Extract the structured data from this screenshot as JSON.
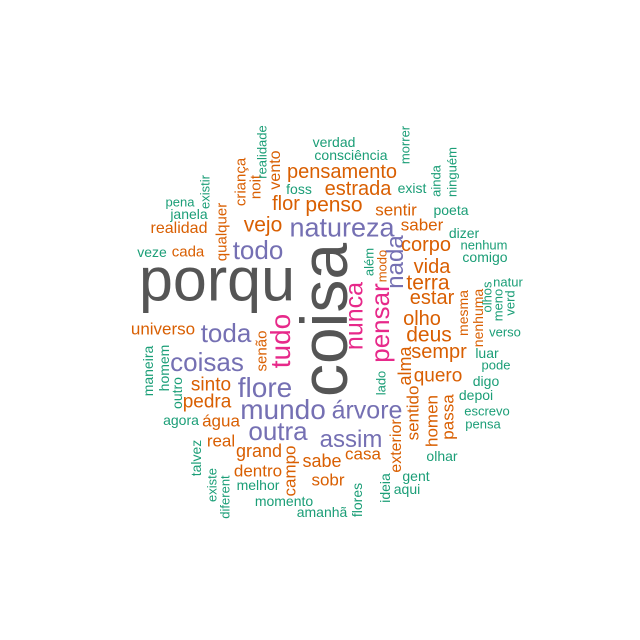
{
  "chart_data": {
    "type": "wordcloud",
    "tier_colors": {
      "1": "#1b9e77",
      "2": "#d95f02",
      "3": "#7570b3",
      "4": "#e7298a",
      "5": "#555555"
    },
    "words": [
      {
        "text": "porqu",
        "tier": 5
      },
      {
        "text": "coisa",
        "tier": 5
      },
      {
        "text": "nunca",
        "tier": 4
      },
      {
        "text": "pensar",
        "tier": 4
      },
      {
        "text": "tudo",
        "tier": 4
      },
      {
        "text": "natureza",
        "tier": 3
      },
      {
        "text": "todo",
        "tier": 3
      },
      {
        "text": "nada",
        "tier": 3
      },
      {
        "text": "toda",
        "tier": 3
      },
      {
        "text": "coisas",
        "tier": 3
      },
      {
        "text": "flore",
        "tier": 3
      },
      {
        "text": "mundo",
        "tier": 3
      },
      {
        "text": "árvore",
        "tier": 3
      },
      {
        "text": "outra",
        "tier": 3
      },
      {
        "text": "assim",
        "tier": 3
      },
      {
        "text": "pensamento",
        "tier": 2
      },
      {
        "text": "estrada",
        "tier": 2
      },
      {
        "text": "flor",
        "tier": 2
      },
      {
        "text": "penso",
        "tier": 2
      },
      {
        "text": "sentir",
        "tier": 2
      },
      {
        "text": "vejo",
        "tier": 2
      },
      {
        "text": "saber",
        "tier": 2
      },
      {
        "text": "realidad",
        "tier": 2
      },
      {
        "text": "corpo",
        "tier": 2
      },
      {
        "text": "cada",
        "tier": 2
      },
      {
        "text": "vida",
        "tier": 2
      },
      {
        "text": "terra",
        "tier": 2
      },
      {
        "text": "estar",
        "tier": 2
      },
      {
        "text": "universo",
        "tier": 2
      },
      {
        "text": "olho",
        "tier": 2
      },
      {
        "text": "deus",
        "tier": 2
      },
      {
        "text": "sempr",
        "tier": 2
      },
      {
        "text": "quero",
        "tier": 2
      },
      {
        "text": "sinto",
        "tier": 2
      },
      {
        "text": "pedra",
        "tier": 2
      },
      {
        "text": "água",
        "tier": 2
      },
      {
        "text": "real",
        "tier": 2
      },
      {
        "text": "grand",
        "tier": 2
      },
      {
        "text": "casa",
        "tier": 2
      },
      {
        "text": "sabe",
        "tier": 2
      },
      {
        "text": "dentro",
        "tier": 2
      },
      {
        "text": "sobr",
        "tier": 2
      },
      {
        "text": "criança",
        "tier": 2
      },
      {
        "text": "noit",
        "tier": 2
      },
      {
        "text": "vento",
        "tier": 2
      },
      {
        "text": "qualquer",
        "tier": 2
      },
      {
        "text": "modo",
        "tier": 2
      },
      {
        "text": "mesma",
        "tier": 2
      },
      {
        "text": "nenhuma",
        "tier": 2
      },
      {
        "text": "senão",
        "tier": 2
      },
      {
        "text": "alma",
        "tier": 2
      },
      {
        "text": "sentido",
        "tier": 2
      },
      {
        "text": "homen",
        "tier": 2
      },
      {
        "text": "passa",
        "tier": 2
      },
      {
        "text": "exterior",
        "tier": 2
      },
      {
        "text": "campo",
        "tier": 2
      },
      {
        "text": "verdad",
        "tier": 1
      },
      {
        "text": "consciência",
        "tier": 1
      },
      {
        "text": "foss",
        "tier": 1
      },
      {
        "text": "exist",
        "tier": 1
      },
      {
        "text": "poeta",
        "tier": 1
      },
      {
        "text": "pena",
        "tier": 1
      },
      {
        "text": "janela",
        "tier": 1
      },
      {
        "text": "dizer",
        "tier": 1
      },
      {
        "text": "nenhum",
        "tier": 1
      },
      {
        "text": "veze",
        "tier": 1
      },
      {
        "text": "comigo",
        "tier": 1
      },
      {
        "text": "natur",
        "tier": 1
      },
      {
        "text": "verso",
        "tier": 1
      },
      {
        "text": "luar",
        "tier": 1
      },
      {
        "text": "pode",
        "tier": 1
      },
      {
        "text": "digo",
        "tier": 1
      },
      {
        "text": "depoi",
        "tier": 1
      },
      {
        "text": "escrevo",
        "tier": 1
      },
      {
        "text": "agora",
        "tier": 1
      },
      {
        "text": "pensa",
        "tier": 1
      },
      {
        "text": "olhar",
        "tier": 1
      },
      {
        "text": "gent",
        "tier": 1
      },
      {
        "text": "aqui",
        "tier": 1
      },
      {
        "text": "melhor",
        "tier": 1
      },
      {
        "text": "momento",
        "tier": 1
      },
      {
        "text": "amanhã",
        "tier": 1
      },
      {
        "text": "realidade",
        "tier": 1
      },
      {
        "text": "morrer",
        "tier": 1
      },
      {
        "text": "ainda",
        "tier": 1
      },
      {
        "text": "ninguém",
        "tier": 1
      },
      {
        "text": "existir",
        "tier": 1
      },
      {
        "text": "além",
        "tier": 1
      },
      {
        "text": "olhos",
        "tier": 1
      },
      {
        "text": "meno",
        "tier": 1
      },
      {
        "text": "verd",
        "tier": 1
      },
      {
        "text": "maneira",
        "tier": 1
      },
      {
        "text": "homem",
        "tier": 1
      },
      {
        "text": "lado",
        "tier": 1
      },
      {
        "text": "outro",
        "tier": 1
      },
      {
        "text": "talvez",
        "tier": 1
      },
      {
        "text": "existe",
        "tier": 1
      },
      {
        "text": "ideia",
        "tier": 1
      },
      {
        "text": "diferent",
        "tier": 1
      },
      {
        "text": "flores",
        "tier": 1
      }
    ]
  }
}
